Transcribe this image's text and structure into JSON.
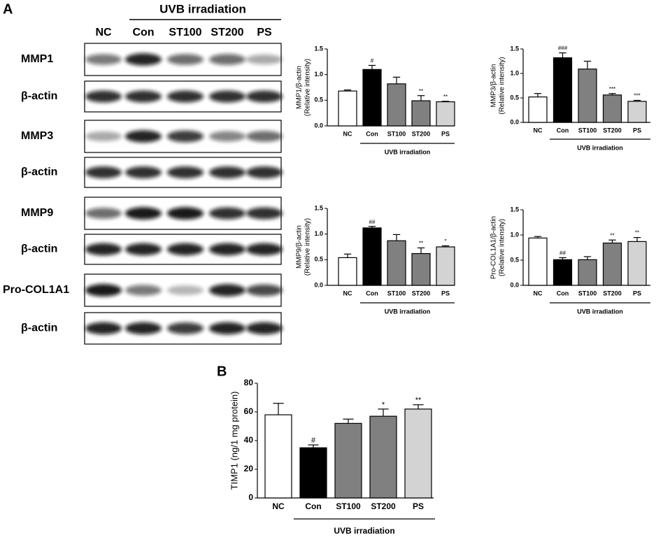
{
  "panel_labels": [
    "A",
    "B"
  ],
  "blot": {
    "group_label": "UVB irradiation",
    "lanes": [
      "NC",
      "Con",
      "ST100",
      "ST200",
      "PS"
    ],
    "rows": [
      "MMP1",
      "β-actin",
      "MMP3",
      "β-actin",
      "MMP9",
      "β-actin",
      "Pro-COL1A1",
      "β-actin"
    ]
  },
  "chart_data": [
    {
      "type": "bar",
      "ylabel": [
        "MMP1/β-actin",
        "(Relative intensity)"
      ],
      "categories": [
        "NC",
        "Con",
        "ST100",
        "ST200",
        "PS"
      ],
      "values": [
        0.68,
        1.1,
        0.82,
        0.49,
        0.47
      ],
      "errors": [
        0.02,
        0.08,
        0.13,
        0.1,
        0.01
      ],
      "annotations": [
        null,
        "#",
        null,
        "**",
        "**"
      ],
      "colors": [
        "#ffffff",
        "#000000",
        "#808080",
        "#808080",
        "#d3d3d3"
      ],
      "ylim": [
        0,
        1.5
      ],
      "yticks": [
        {
          "value": 0,
          "label": "0.0"
        },
        {
          "value": 0.5,
          "label": "0.5"
        },
        {
          "value": 1,
          "label": "1.0"
        },
        {
          "value": 1.5,
          "label": "1.5"
        }
      ],
      "group_label": "UVB irradiation"
    },
    {
      "type": "bar",
      "ylabel": [
        "MMP3/β-actin",
        "(Relative intensity)"
      ],
      "categories": [
        "NC",
        "Con",
        "ST100",
        "ST200",
        "PS"
      ],
      "values": [
        0.52,
        1.32,
        1.09,
        0.56,
        0.43
      ],
      "errors": [
        0.07,
        0.1,
        0.16,
        0.03,
        0.02
      ],
      "annotations": [
        null,
        "###",
        null,
        "***",
        "***"
      ],
      "colors": [
        "#ffffff",
        "#000000",
        "#808080",
        "#808080",
        "#d3d3d3"
      ],
      "ylim": [
        0,
        1.5
      ],
      "yticks": [
        {
          "value": 0,
          "label": "0.0"
        },
        {
          "value": 0.5,
          "label": "0.5"
        },
        {
          "value": 1,
          "label": "1.0"
        },
        {
          "value": 1.5,
          "label": "1.5"
        }
      ],
      "group_label": "UVB irradiation"
    },
    {
      "type": "bar",
      "ylabel": [
        "MMP9/β-actin",
        "(Relative intensity)"
      ],
      "categories": [
        "NC",
        "Con",
        "ST100",
        "ST200",
        "PS"
      ],
      "values": [
        0.54,
        1.12,
        0.87,
        0.62,
        0.75
      ],
      "errors": [
        0.07,
        0.03,
        0.12,
        0.11,
        0.02
      ],
      "annotations": [
        null,
        "##",
        null,
        "**",
        "*"
      ],
      "colors": [
        "#ffffff",
        "#000000",
        "#808080",
        "#808080",
        "#d3d3d3"
      ],
      "ylim": [
        0,
        1.5
      ],
      "yticks": [
        {
          "value": 0,
          "label": "0.0"
        },
        {
          "value": 0.5,
          "label": "0.5"
        },
        {
          "value": 1,
          "label": "1.0"
        },
        {
          "value": 1.5,
          "label": "1.5"
        }
      ],
      "group_label": "UVB irradiation"
    },
    {
      "type": "bar",
      "ylabel": [
        "Pro-COL1A1/β-actin",
        "(Relative intensity)"
      ],
      "categories": [
        "NC",
        "Con",
        "ST100",
        "ST200",
        "PS"
      ],
      "values": [
        0.94,
        0.51,
        0.51,
        0.84,
        0.87
      ],
      "errors": [
        0.03,
        0.04,
        0.06,
        0.06,
        0.08
      ],
      "annotations": [
        null,
        "##",
        null,
        "**",
        "**"
      ],
      "colors": [
        "#ffffff",
        "#000000",
        "#808080",
        "#808080",
        "#d3d3d3"
      ],
      "ylim": [
        0,
        1.5
      ],
      "yticks": [
        {
          "value": 0,
          "label": "0.0"
        },
        {
          "value": 0.5,
          "label": "0.5"
        },
        {
          "value": 1,
          "label": "1.0"
        },
        {
          "value": 1.5,
          "label": "1.5"
        }
      ],
      "group_label": "UVB irradiation"
    },
    {
      "type": "bar",
      "ylabel": [
        "TIMP1 (ng/1 mg protein)"
      ],
      "categories": [
        "NC",
        "Con",
        "ST100",
        "ST200",
        "PS"
      ],
      "values": [
        58,
        35,
        52,
        57,
        62
      ],
      "errors": [
        8,
        2,
        3,
        5,
        3
      ],
      "annotations": [
        null,
        "#",
        null,
        "*",
        "**"
      ],
      "colors": [
        "#ffffff",
        "#000000",
        "#808080",
        "#808080",
        "#d3d3d3"
      ],
      "ylim": [
        0,
        80
      ],
      "yticks": [
        0,
        20,
        40,
        60,
        80
      ],
      "group_label": "UVB irradiation"
    }
  ]
}
